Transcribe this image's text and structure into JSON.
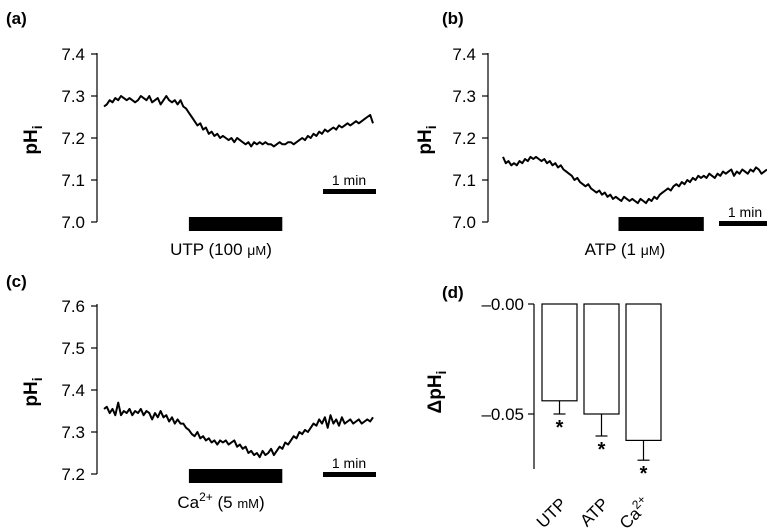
{
  "chart_data": [
    {
      "panel": "(a)",
      "type": "line",
      "ylabel_main": "pH",
      "ylabel_sub": "i",
      "ylim": [
        7.0,
        7.4
      ],
      "yticks": [
        "7.0",
        "7.1",
        "7.2",
        "7.3",
        "7.4"
      ],
      "scale_bar": "1 min",
      "stimulus": {
        "pre": "UTP (100 ",
        "unit_mu": "μ",
        "unit_M": "M",
        "post": ")",
        "start": 3.0,
        "end": 6.3
      },
      "x_min": 0,
      "x_max": 9.5,
      "x": [
        0,
        0.1,
        0.2,
        0.3,
        0.4,
        0.5,
        0.6,
        0.7,
        0.8,
        0.9,
        1.0,
        1.1,
        1.2,
        1.3,
        1.4,
        1.5,
        1.6,
        1.7,
        1.8,
        1.9,
        2.0,
        2.1,
        2.2,
        2.3,
        2.4,
        2.5,
        2.6,
        2.7,
        2.8,
        2.9,
        3.0,
        3.1,
        3.2,
        3.3,
        3.4,
        3.5,
        3.6,
        3.7,
        3.8,
        3.9,
        4.0,
        4.1,
        4.2,
        4.3,
        4.4,
        4.5,
        4.6,
        4.7,
        4.8,
        4.9,
        5.0,
        5.1,
        5.2,
        5.3,
        5.4,
        5.5,
        5.6,
        5.7,
        5.8,
        5.9,
        6.0,
        6.1,
        6.2,
        6.3,
        6.4,
        6.5,
        6.6,
        6.7,
        6.8,
        6.9,
        7.0,
        7.1,
        7.2,
        7.3,
        7.4,
        7.5,
        7.6,
        7.7,
        7.8,
        7.9,
        8.0,
        8.1,
        8.2,
        8.3,
        8.4,
        8.5,
        8.6,
        8.7,
        8.8,
        8.9,
        9.0,
        9.1,
        9.2,
        9.3,
        9.4,
        9.5
      ],
      "y": [
        7.275,
        7.28,
        7.29,
        7.285,
        7.295,
        7.29,
        7.3,
        7.295,
        7.29,
        7.295,
        7.29,
        7.285,
        7.29,
        7.3,
        7.295,
        7.29,
        7.3,
        7.285,
        7.29,
        7.295,
        7.28,
        7.29,
        7.3,
        7.29,
        7.285,
        7.29,
        7.28,
        7.29,
        7.275,
        7.27,
        7.26,
        7.25,
        7.24,
        7.23,
        7.235,
        7.22,
        7.225,
        7.21,
        7.215,
        7.205,
        7.21,
        7.2,
        7.205,
        7.2,
        7.195,
        7.2,
        7.19,
        7.2,
        7.195,
        7.19,
        7.185,
        7.19,
        7.18,
        7.19,
        7.185,
        7.19,
        7.185,
        7.19,
        7.185,
        7.185,
        7.18,
        7.185,
        7.19,
        7.185,
        7.185,
        7.19,
        7.19,
        7.185,
        7.19,
        7.195,
        7.2,
        7.195,
        7.205,
        7.2,
        7.21,
        7.205,
        7.215,
        7.21,
        7.22,
        7.215,
        7.22,
        7.225,
        7.22,
        7.23,
        7.225,
        7.23,
        7.235,
        7.23,
        7.235,
        7.24,
        7.235,
        7.24,
        7.245,
        7.25,
        7.255,
        7.235
      ]
    },
    {
      "panel": "(b)",
      "type": "line",
      "ylabel_main": "pH",
      "ylabel_sub": "i",
      "ylim": [
        7.0,
        7.4
      ],
      "yticks": [
        "7.0",
        "7.1",
        "7.2",
        "7.3",
        "7.4"
      ],
      "scale_bar": "1 min",
      "stimulus": {
        "pre": "ATP (1 ",
        "unit_mu": "μ",
        "unit_M": "M",
        "post": ")",
        "start": 4.2,
        "end": 7.3
      },
      "x_min": 0,
      "x_max": 9.6,
      "x": [
        0,
        0.1,
        0.2,
        0.3,
        0.4,
        0.5,
        0.6,
        0.7,
        0.8,
        0.9,
        1.0,
        1.1,
        1.2,
        1.3,
        1.4,
        1.5,
        1.6,
        1.7,
        1.8,
        1.9,
        2.0,
        2.1,
        2.2,
        2.3,
        2.4,
        2.5,
        2.6,
        2.7,
        2.8,
        2.9,
        3.0,
        3.1,
        3.2,
        3.3,
        3.4,
        3.5,
        3.6,
        3.7,
        3.8,
        3.9,
        4.0,
        4.1,
        4.2,
        4.3,
        4.4,
        4.5,
        4.6,
        4.7,
        4.8,
        4.9,
        5.0,
        5.1,
        5.2,
        5.3,
        5.4,
        5.5,
        5.6,
        5.7,
        5.8,
        5.9,
        6.0,
        6.1,
        6.2,
        6.3,
        6.4,
        6.5,
        6.6,
        6.7,
        6.8,
        6.9,
        7.0,
        7.1,
        7.2,
        7.3,
        7.4,
        7.5,
        7.6,
        7.7,
        7.8,
        7.9,
        8.0,
        8.1,
        8.2,
        8.3,
        8.4,
        8.5,
        8.6,
        8.7,
        8.8,
        8.9,
        9.0,
        9.1,
        9.2,
        9.3,
        9.4,
        9.5,
        9.6
      ],
      "y": [
        7.155,
        7.14,
        7.145,
        7.135,
        7.14,
        7.135,
        7.145,
        7.14,
        7.15,
        7.145,
        7.155,
        7.15,
        7.155,
        7.15,
        7.145,
        7.15,
        7.14,
        7.145,
        7.135,
        7.14,
        7.13,
        7.135,
        7.125,
        7.12,
        7.115,
        7.11,
        7.1,
        7.105,
        7.095,
        7.09,
        7.085,
        7.09,
        7.08,
        7.075,
        7.07,
        7.075,
        7.065,
        7.07,
        7.06,
        7.065,
        7.055,
        7.06,
        7.055,
        7.05,
        7.06,
        7.055,
        7.05,
        7.055,
        7.05,
        7.045,
        7.055,
        7.05,
        7.045,
        7.055,
        7.05,
        7.06,
        7.055,
        7.065,
        7.07,
        7.075,
        7.08,
        7.075,
        7.085,
        7.09,
        7.085,
        7.095,
        7.09,
        7.1,
        7.095,
        7.105,
        7.1,
        7.11,
        7.105,
        7.11,
        7.105,
        7.115,
        7.11,
        7.105,
        7.115,
        7.11,
        7.12,
        7.115,
        7.12,
        7.125,
        7.11,
        7.12,
        7.115,
        7.125,
        7.12,
        7.115,
        7.125,
        7.12,
        7.13,
        7.125,
        7.115,
        7.12,
        7.125
      ]
    },
    {
      "panel": "(c)",
      "type": "line",
      "ylabel_main": "pH",
      "ylabel_sub": "i",
      "ylim": [
        7.2,
        7.6
      ],
      "yticks": [
        "7.2",
        "7.3",
        "7.4",
        "7.5",
        "7.6"
      ],
      "scale_bar": "1 min",
      "stimulus": {
        "pre": "Ca",
        "sup": "2+",
        "post": " (5 ",
        "unit_mu": "",
        "unit_M": "mM",
        "end_text": ")",
        "start": 3.0,
        "end": 6.3
      },
      "x_min": 0,
      "x_max": 9.5,
      "x": [
        0,
        0.1,
        0.2,
        0.3,
        0.4,
        0.5,
        0.6,
        0.7,
        0.8,
        0.9,
        1.0,
        1.1,
        1.2,
        1.3,
        1.4,
        1.5,
        1.6,
        1.7,
        1.8,
        1.9,
        2.0,
        2.1,
        2.2,
        2.3,
        2.4,
        2.5,
        2.6,
        2.7,
        2.8,
        2.9,
        3.0,
        3.1,
        3.2,
        3.3,
        3.4,
        3.5,
        3.6,
        3.7,
        3.8,
        3.9,
        4.0,
        4.1,
        4.2,
        4.3,
        4.4,
        4.5,
        4.6,
        4.7,
        4.8,
        4.9,
        5.0,
        5.1,
        5.2,
        5.3,
        5.4,
        5.5,
        5.6,
        5.7,
        5.8,
        5.9,
        6.0,
        6.1,
        6.2,
        6.3,
        6.4,
        6.5,
        6.6,
        6.7,
        6.8,
        6.9,
        7.0,
        7.1,
        7.2,
        7.3,
        7.4,
        7.5,
        7.6,
        7.7,
        7.8,
        7.9,
        8.0,
        8.1,
        8.2,
        8.3,
        8.4,
        8.5,
        8.6,
        8.7,
        8.8,
        8.9,
        9.0,
        9.1,
        9.2,
        9.3,
        9.4,
        9.5
      ],
      "y": [
        7.355,
        7.36,
        7.345,
        7.355,
        7.34,
        7.37,
        7.34,
        7.35,
        7.345,
        7.355,
        7.34,
        7.35,
        7.345,
        7.355,
        7.34,
        7.35,
        7.345,
        7.33,
        7.345,
        7.335,
        7.35,
        7.335,
        7.34,
        7.325,
        7.335,
        7.32,
        7.33,
        7.32,
        7.32,
        7.31,
        7.305,
        7.295,
        7.29,
        7.3,
        7.285,
        7.29,
        7.28,
        7.285,
        7.275,
        7.28,
        7.27,
        7.28,
        7.275,
        7.28,
        7.27,
        7.275,
        7.28,
        7.265,
        7.27,
        7.26,
        7.265,
        7.25,
        7.255,
        7.245,
        7.25,
        7.24,
        7.255,
        7.245,
        7.25,
        7.26,
        7.245,
        7.255,
        7.265,
        7.26,
        7.275,
        7.27,
        7.28,
        7.29,
        7.285,
        7.3,
        7.295,
        7.305,
        7.3,
        7.31,
        7.32,
        7.315,
        7.33,
        7.32,
        7.335,
        7.31,
        7.34,
        7.32,
        7.33,
        7.315,
        7.335,
        7.32,
        7.325,
        7.33,
        7.32,
        7.325,
        7.33,
        7.32,
        7.325,
        7.33,
        7.325,
        7.335
      ]
    },
    {
      "panel": "(d)",
      "type": "bar",
      "ylabel_main": "ΔpH",
      "ylabel_sub": "i",
      "ylim": [
        -0.075,
        0.0
      ],
      "yticks": [
        "–0.00",
        "–0.05"
      ],
      "ytick_values": [
        0.0,
        -0.05
      ],
      "categories": [
        "UTP",
        "ATP",
        "Ca2+"
      ],
      "category_labels": [
        {
          "main": "UTP",
          "sup": ""
        },
        {
          "main": "ATP",
          "sup": ""
        },
        {
          "main": "Ca",
          "sup": "2+"
        }
      ],
      "values": [
        -0.044,
        -0.05,
        -0.062
      ],
      "errors": [
        0.006,
        0.01,
        0.009
      ],
      "significance": [
        "*",
        "*",
        "*"
      ]
    }
  ]
}
